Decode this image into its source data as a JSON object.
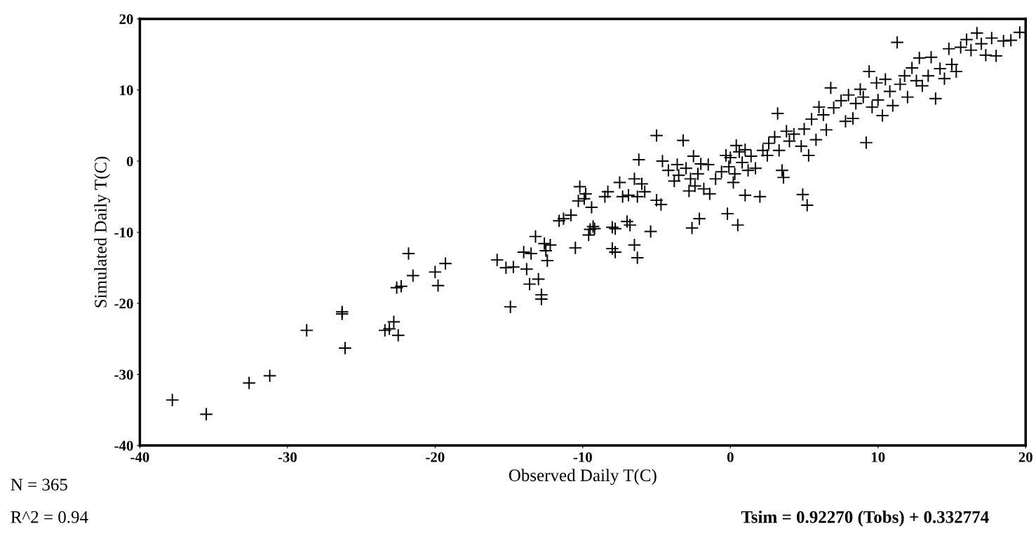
{
  "chart_data": {
    "type": "scatter",
    "xlabel": "Observed Daily T(C)",
    "ylabel": "Simulated Daily T(C)",
    "xlim": [
      -40,
      20
    ],
    "xticks": [
      -40,
      -30,
      -20,
      -10,
      0,
      10,
      20
    ],
    "ylim": [
      -40,
      20
    ],
    "yticks": [
      -40,
      -30,
      -20,
      -10,
      0,
      10,
      20
    ],
    "marker": "cross",
    "annotations": [
      "N = 365",
      "R^2 = 0.94",
      "Tsim = 0.92270 (Tobs) + 0.332774"
    ],
    "series": [
      {
        "color": "#000000",
        "x": [
          -37.8,
          -35.5,
          -32.6,
          -31.2,
          -28.7,
          -26.3,
          -26.3,
          -26.1,
          -23.4,
          -23.1,
          -22.8,
          -22.5,
          -22.6,
          -22.3,
          -21.8,
          -21.5,
          -20,
          -19.8,
          -19.3,
          -15.8,
          -15.2,
          -14.7,
          -14.9,
          -14.0,
          -13.8,
          -13.6,
          -13.5,
          -13.2,
          -13,
          -12.8,
          -12.8,
          -12.6,
          -12.5,
          -12.4,
          -12.2,
          -11.6,
          -11.3,
          -10.8,
          -10.5,
          -10.2,
          -10.3,
          -9.9,
          -9.8,
          -9.6,
          -9.5,
          -9.3,
          -9.4,
          -9.2,
          -8.5,
          -8.3,
          -8.0,
          -8.0,
          -7.8,
          -7.8,
          -7.5,
          -7.3,
          -7.0,
          -6.9,
          -6.8,
          -6.5,
          -6.5,
          -6.3,
          -6.3,
          -6.2,
          -6.0,
          -5.8,
          -5.4,
          -5.0,
          -5.0,
          -4.7,
          -4.6,
          -4.2,
          -3.8,
          -3.6,
          -3.5,
          -3.2,
          -3.0,
          -2.8,
          -2.7,
          -2.6,
          -2.5,
          -2.4,
          -2.2,
          -2.1,
          -2.0,
          -1.8,
          -1.5,
          -1.4,
          -1.0,
          -0.6,
          -0.3,
          -0.2,
          -0.1,
          0,
          0.2,
          0.3,
          0.4,
          0.5,
          0.6,
          0.8,
          1,
          1,
          1.2,
          1.4,
          1.7,
          2,
          2.2,
          2.5,
          2.6,
          3.0,
          3.2,
          3.3,
          3.5,
          3.6,
          3.8,
          4,
          4.3,
          4.8,
          4.9,
          5,
          5.2,
          5.3,
          5.5,
          5.8,
          6,
          6.3,
          6.5,
          6.8,
          7,
          7.5,
          7.8,
          8,
          8.3,
          8.5,
          8.8,
          9,
          9.2,
          9.4,
          9.6,
          9.9,
          10,
          10.3,
          10.5,
          10.8,
          11,
          11.3,
          11.5,
          11.8,
          12,
          12.3,
          12.6,
          12.8,
          13,
          13.4,
          13.6,
          13.9,
          14.2,
          14.5,
          14.8,
          15,
          15.3,
          15.6,
          16,
          16.3,
          16.7,
          17,
          17.3,
          17.7,
          18,
          18.5,
          19,
          19.6
        ],
        "values": [
          -33.6,
          -35.6,
          -31.2,
          -30.2,
          -23.8,
          -21.2,
          -21.5,
          -26.3,
          -23.8,
          -23.6,
          -22.6,
          -24.5,
          -17.8,
          -17.6,
          -13,
          -16.1,
          -15.6,
          -17.5,
          -14.4,
          -13.9,
          -15,
          -14.9,
          -20.5,
          -12.8,
          -15.2,
          -17.3,
          -13.0,
          -10.6,
          -16.6,
          -18.8,
          -19.4,
          -11.6,
          -12.6,
          -14.0,
          -11.8,
          -8.4,
          -8.1,
          -7.6,
          -12.2,
          -3.6,
          -5.6,
          -5.3,
          -4.6,
          -10.4,
          -9.6,
          -9.2,
          -6.5,
          -9.5,
          -5.0,
          -4.3,
          -9.3,
          -12.3,
          -12.8,
          -9.5,
          -3.0,
          -5.0,
          -8.5,
          -4.8,
          -9.0,
          -2.5,
          -11.8,
          -13.6,
          -5.0,
          0.2,
          -3.2,
          -4.3,
          -9.9,
          3.6,
          -5.5,
          -6.1,
          0,
          -1.3,
          -2.8,
          -0.5,
          -2.0,
          2.9,
          -1.0,
          -4.2,
          -2.5,
          -9.4,
          0.7,
          -3.5,
          -1.8,
          -8.1,
          -0.4,
          -3.9,
          -0.5,
          -4.6,
          -2.5,
          -1.5,
          0.8,
          -7.4,
          -0.8,
          0.5,
          -3.0,
          -1.8,
          2.2,
          -9.0,
          1.3,
          -0.2,
          1.6,
          -4.8,
          -1.3,
          0.7,
          -1.0,
          -5.0,
          1.5,
          0.8,
          2.5,
          3.4,
          6.7,
          1.5,
          -1.3,
          -2.3,
          4.2,
          2.8,
          3.8,
          2.1,
          -4.7,
          4.5,
          -6.2,
          0.8,
          5.9,
          3.0,
          7.6,
          6.5,
          4.4,
          10.3,
          7.5,
          8.5,
          5.6,
          9.3,
          6.0,
          8.1,
          10.1,
          9.0,
          2.6,
          12.6,
          7.6,
          11,
          8.6,
          6.4,
          11.5,
          9.8,
          7.8,
          16.7,
          10.8,
          12.0,
          9.0,
          13.1,
          11.3,
          14.5,
          10.6,
          12,
          14.6,
          8.8,
          13.0,
          11.6,
          15.8,
          13.6,
          12.6,
          16.0,
          17.1,
          15.6,
          18.0,
          16.5,
          14.9,
          17.3,
          14.8,
          16.9,
          17.0,
          18.1
        ]
      }
    ]
  }
}
